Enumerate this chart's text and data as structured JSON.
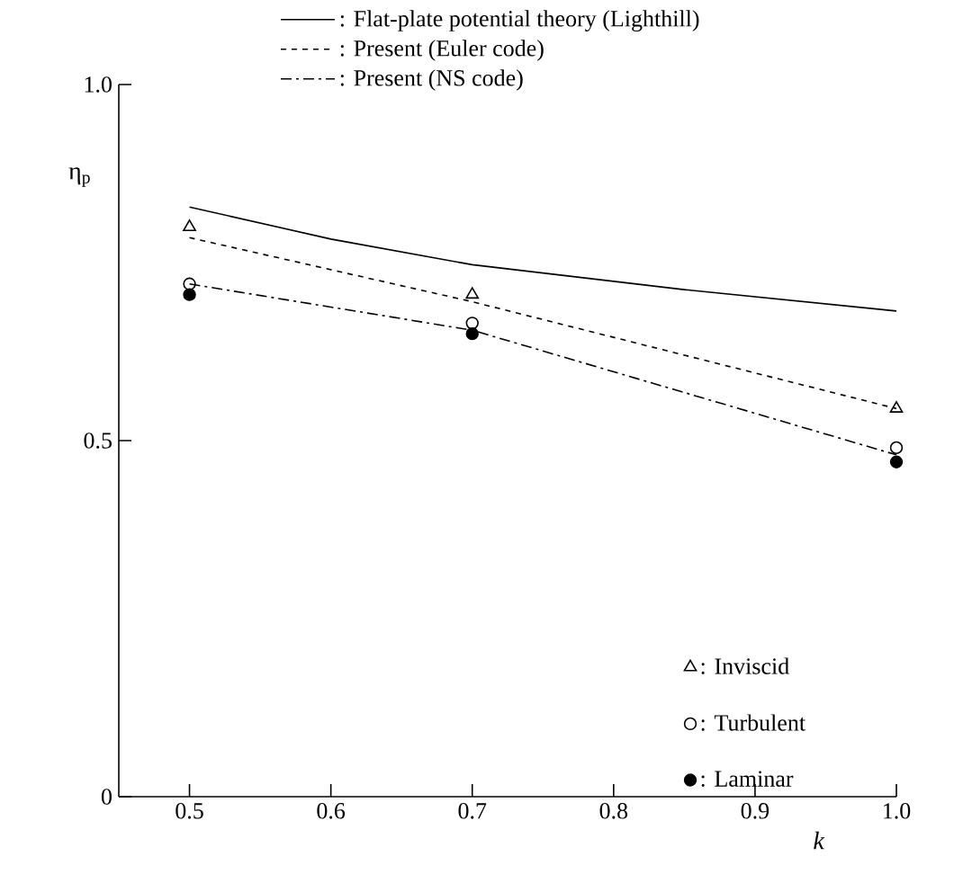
{
  "chart_data": {
    "type": "line",
    "xlabel": "k",
    "ylabel": "η$_{p}$",
    "xlim": [
      0.45,
      1.0
    ],
    "ylim": [
      0,
      1.0
    ],
    "xticks": [
      0.5,
      0.6,
      0.7,
      0.8,
      0.9,
      {
        "value": 1.0,
        "label": "1.0"
      }
    ],
    "yticks": [
      0,
      0.5,
      {
        "value": 1.0,
        "label": "1.0"
      }
    ],
    "legend": "top",
    "grid": false,
    "series": [
      {
        "name": ": Flat-plate potential theory (Lighthill)",
        "color": "#000000",
        "line_style": "solid",
        "x": [
          0.5,
          0.6,
          0.7,
          0.85,
          1.0
        ],
        "values": [
          0.828,
          0.783,
          0.747,
          0.712,
          0.682
        ]
      },
      {
        "name": ": Present (Euler code)",
        "color": "#000000",
        "line_style": "dashed",
        "x": [
          0.5,
          0.7,
          1.0
        ],
        "values": [
          0.785,
          0.695,
          0.545
        ]
      },
      {
        "name": ": Present (NS code)",
        "color": "#000000",
        "line_style": "dashdot",
        "x": [
          0.5,
          0.7,
          1.0
        ],
        "values": [
          0.72,
          0.655,
          0.48
        ]
      },
      {
        "name": ": Inviscid",
        "type": "scatter",
        "color": "#000000",
        "marker": "triangle",
        "x": [
          0.5,
          0.7,
          1.0
        ],
        "values": [
          0.8,
          0.705,
          0.545
        ]
      },
      {
        "name": ": Turbulent",
        "type": "scatter",
        "color": "#000000",
        "marker": "circle",
        "x": [
          0.5,
          0.7,
          1.0
        ],
        "values": [
          0.72,
          0.665,
          0.49
        ]
      },
      {
        "name": ": Laminar",
        "type": "scatter",
        "color": "#000000",
        "marker": "filled_circle",
        "x": [
          0.5,
          0.7,
          1.0
        ],
        "values": [
          0.705,
          0.65,
          0.47
        ]
      }
    ]
  }
}
